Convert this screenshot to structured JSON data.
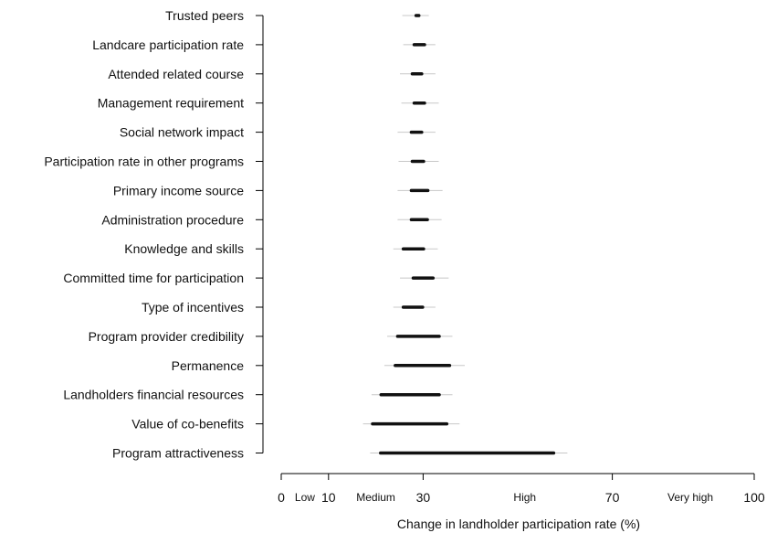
{
  "chart_data": {
    "type": "range",
    "xlabel": "Change in landholder participation rate (%)",
    "xlim": [
      0,
      100
    ],
    "x_ticks": [
      0,
      10,
      30,
      70,
      100
    ],
    "x_tick_labels": [
      "0",
      "10",
      "30",
      "70",
      "100"
    ],
    "bands": [
      {
        "label": "Low",
        "at": 5
      },
      {
        "label": "Medium",
        "at": 20
      },
      {
        "label": "High",
        "at": 51.5
      },
      {
        "label": "Very high",
        "at": 86.5
      }
    ],
    "categories": [
      "Trusted peers",
      "Landcare participation rate",
      "Attended related course",
      "Management requirement",
      "Social network impact",
      "Participation rate in other programs",
      "Primary income source",
      "Administration procedure",
      "Knowledge and skills",
      "Committed time for participation",
      "Type of incentives",
      "Program provider credibility",
      "Permanence",
      "Landholders financial resources",
      "Value of co-benefits",
      "Program attractiveness"
    ],
    "series": [
      {
        "values": [
          {
            "whisker": [
              25.6,
              31.2
            ],
            "box": [
              28.5,
              29.1
            ]
          },
          {
            "whisker": [
              25.8,
              32.6
            ],
            "box": [
              28.1,
              30.3
            ]
          },
          {
            "whisker": [
              25.1,
              32.6
            ],
            "box": [
              27.7,
              29.7
            ]
          },
          {
            "whisker": [
              25.4,
              33.3
            ],
            "box": [
              28.1,
              30.3
            ]
          },
          {
            "whisker": [
              24.6,
              32.6
            ],
            "box": [
              27.5,
              29.7
            ]
          },
          {
            "whisker": [
              24.8,
              33.3
            ],
            "box": [
              27.7,
              30.1
            ]
          },
          {
            "whisker": [
              24.6,
              34.1
            ],
            "box": [
              27.5,
              31.0
            ]
          },
          {
            "whisker": [
              24.6,
              33.9
            ],
            "box": [
              27.5,
              30.9
            ]
          },
          {
            "whisker": [
              23.7,
              33.1
            ],
            "box": [
              25.8,
              30.1
            ]
          },
          {
            "whisker": [
              25.1,
              35.4
            ],
            "box": [
              27.9,
              32.1
            ]
          },
          {
            "whisker": [
              23.7,
              32.6
            ],
            "box": [
              25.8,
              29.9
            ]
          },
          {
            "whisker": [
              22.4,
              36.2
            ],
            "box": [
              24.6,
              33.4
            ]
          },
          {
            "whisker": [
              21.8,
              38.8
            ],
            "box": [
              24.1,
              35.6
            ]
          },
          {
            "whisker": [
              19.1,
              36.2
            ],
            "box": [
              21.1,
              33.4
            ]
          },
          {
            "whisker": [
              17.3,
              37.7
            ],
            "box": [
              19.3,
              35.0
            ]
          },
          {
            "whisker": [
              18.8,
              60.5
            ],
            "box": [
              21.0,
              57.6
            ]
          }
        ]
      }
    ]
  }
}
